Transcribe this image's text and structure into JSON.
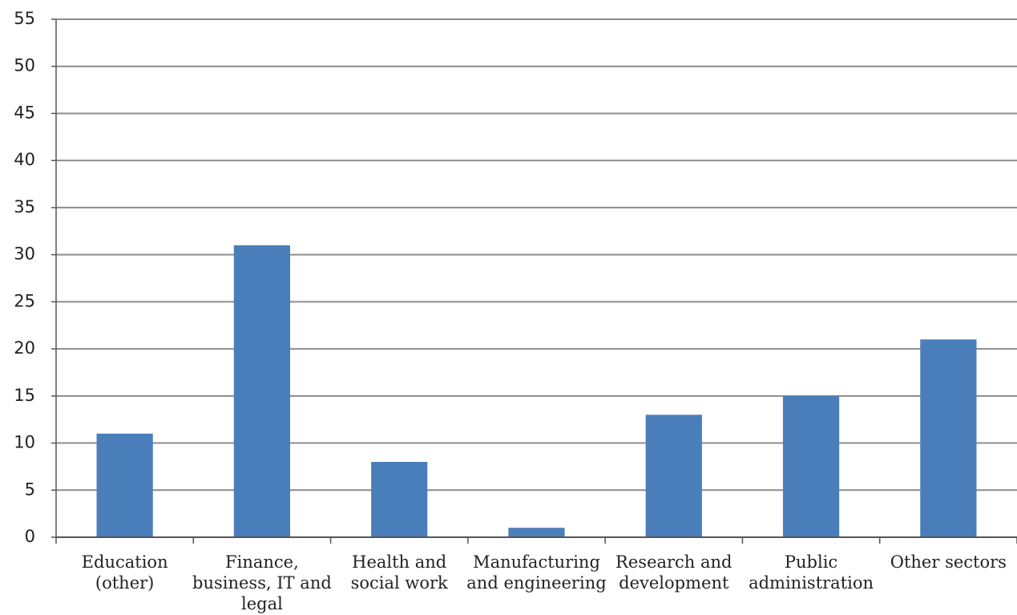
{
  "chart_data": {
    "type": "bar",
    "categories": [
      "Education (other)",
      "Finance, business, IT and legal",
      "Health and social work",
      "Manufacturing and engineering",
      "Research and development",
      "Public administration",
      "Other sectors"
    ],
    "values": [
      11,
      31,
      8,
      1,
      13,
      15,
      21
    ],
    "color": "#4a7ebb",
    "ylim": [
      0,
      55
    ],
    "yticks": [
      0,
      5,
      10,
      15,
      20,
      25,
      30,
      35,
      40,
      45,
      50,
      55
    ],
    "grid": true
  }
}
